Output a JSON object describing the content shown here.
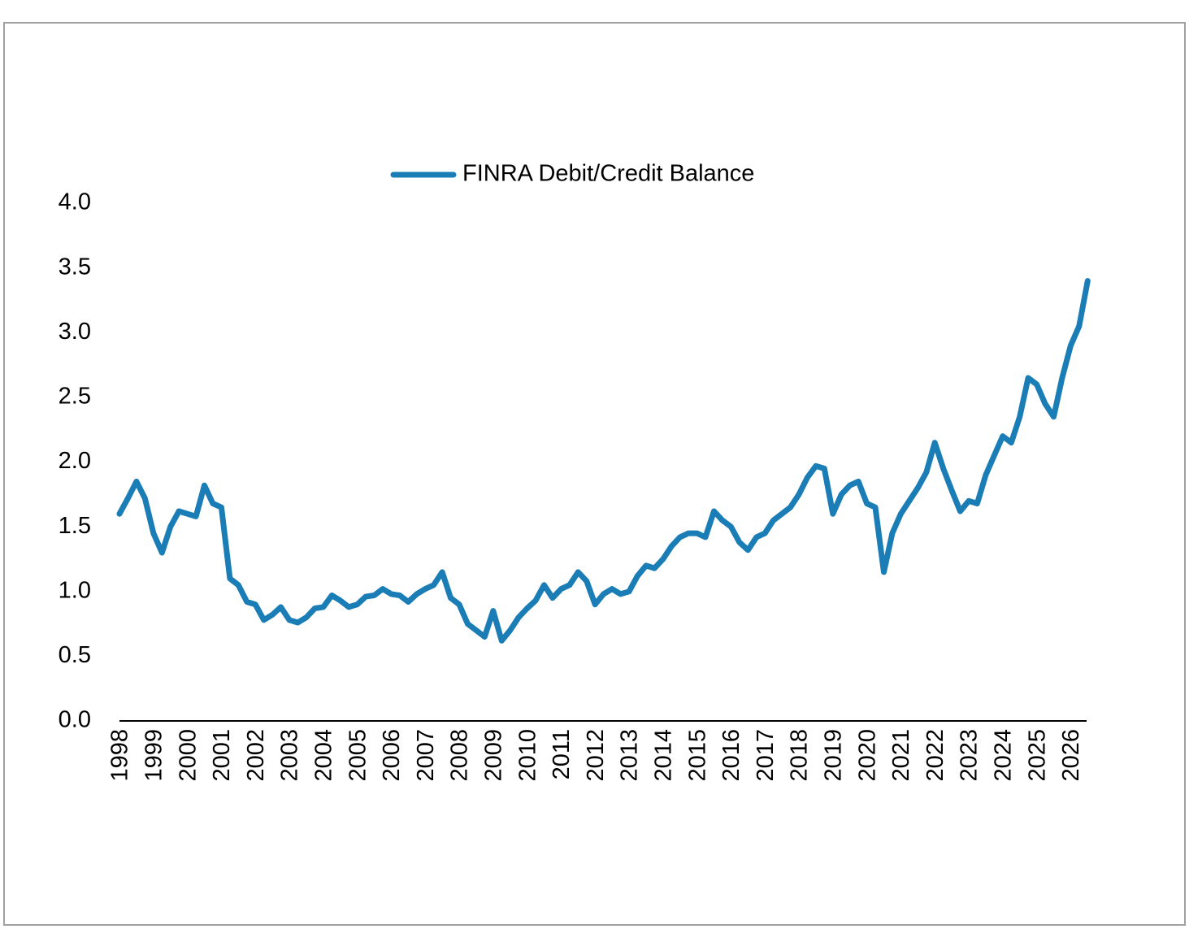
{
  "chart_data": {
    "type": "line",
    "categories": [
      "1998",
      null,
      null,
      null,
      "1999",
      null,
      null,
      null,
      "2000",
      null,
      null,
      null,
      "2001",
      null,
      null,
      null,
      "2002",
      null,
      null,
      null,
      "2003",
      null,
      null,
      null,
      "2004",
      null,
      null,
      null,
      "2005",
      null,
      null,
      null,
      "2006",
      null,
      null,
      null,
      "2007",
      null,
      null,
      null,
      "2008",
      null,
      null,
      null,
      "2009",
      null,
      null,
      null,
      "2010",
      null,
      null,
      null,
      "2011",
      null,
      null,
      null,
      "2012",
      null,
      null,
      null,
      "2013",
      null,
      null,
      null,
      "2014",
      null,
      null,
      null,
      "2015",
      null,
      null,
      null,
      "2016",
      null,
      null,
      null,
      "2017",
      null,
      null,
      null,
      "2018",
      null,
      null,
      null,
      "2019",
      null,
      null,
      null,
      "2020",
      null,
      null,
      null,
      "2021",
      null,
      null,
      null,
      "2022",
      null,
      null,
      null,
      "2023",
      null,
      null,
      null,
      "2024",
      null,
      null,
      null,
      "2025",
      null,
      null,
      null,
      "2026",
      null,
      null
    ],
    "series": [
      {
        "name": "FINRA Debit/Credit Balance",
        "color": "#1a7db5",
        "values": [
          1.6,
          1.72,
          1.85,
          1.72,
          1.45,
          1.3,
          1.5,
          1.62,
          1.6,
          1.58,
          1.82,
          1.68,
          1.65,
          1.1,
          1.05,
          0.92,
          0.9,
          0.78,
          0.82,
          0.88,
          0.78,
          0.76,
          0.8,
          0.87,
          0.88,
          0.97,
          0.93,
          0.88,
          0.9,
          0.96,
          0.97,
          1.02,
          0.98,
          0.97,
          0.92,
          0.98,
          1.02,
          1.05,
          1.15,
          0.95,
          0.9,
          0.75,
          0.7,
          0.65,
          0.85,
          0.62,
          0.7,
          0.8,
          0.87,
          0.93,
          1.05,
          0.95,
          1.02,
          1.05,
          1.15,
          1.08,
          0.9,
          0.98,
          1.02,
          0.98,
          1.0,
          1.12,
          1.2,
          1.18,
          1.25,
          1.35,
          1.42,
          1.45,
          1.45,
          1.42,
          1.62,
          1.55,
          1.5,
          1.38,
          1.32,
          1.42,
          1.45,
          1.55,
          1.6,
          1.65,
          1.75,
          1.88,
          1.97,
          1.95,
          1.6,
          1.75,
          1.82,
          1.85,
          1.68,
          1.65,
          1.15,
          1.45,
          1.6,
          1.7,
          1.8,
          1.92,
          2.15,
          1.95,
          1.78,
          1.62,
          1.7,
          1.68,
          1.9,
          2.05,
          2.2,
          2.15,
          2.35,
          2.65,
          2.6,
          2.45,
          2.35,
          2.65,
          2.9,
          3.05,
          3.4
        ]
      }
    ],
    "ylim": [
      0,
      4
    ],
    "yticks": [
      {
        "value": 0,
        "label": "0.0"
      },
      {
        "value": 0.5,
        "label": "0.5"
      },
      {
        "value": 1,
        "label": "1.0"
      },
      {
        "value": 1.5,
        "label": "1.5"
      },
      {
        "value": 2,
        "label": "2.0"
      },
      {
        "value": 2.5,
        "label": "2.5"
      },
      {
        "value": 3,
        "label": "3.0"
      },
      {
        "value": 3.5,
        "label": "3.5"
      },
      {
        "value": 4,
        "label": "4.0"
      }
    ],
    "grid": false,
    "legend": "top"
  }
}
